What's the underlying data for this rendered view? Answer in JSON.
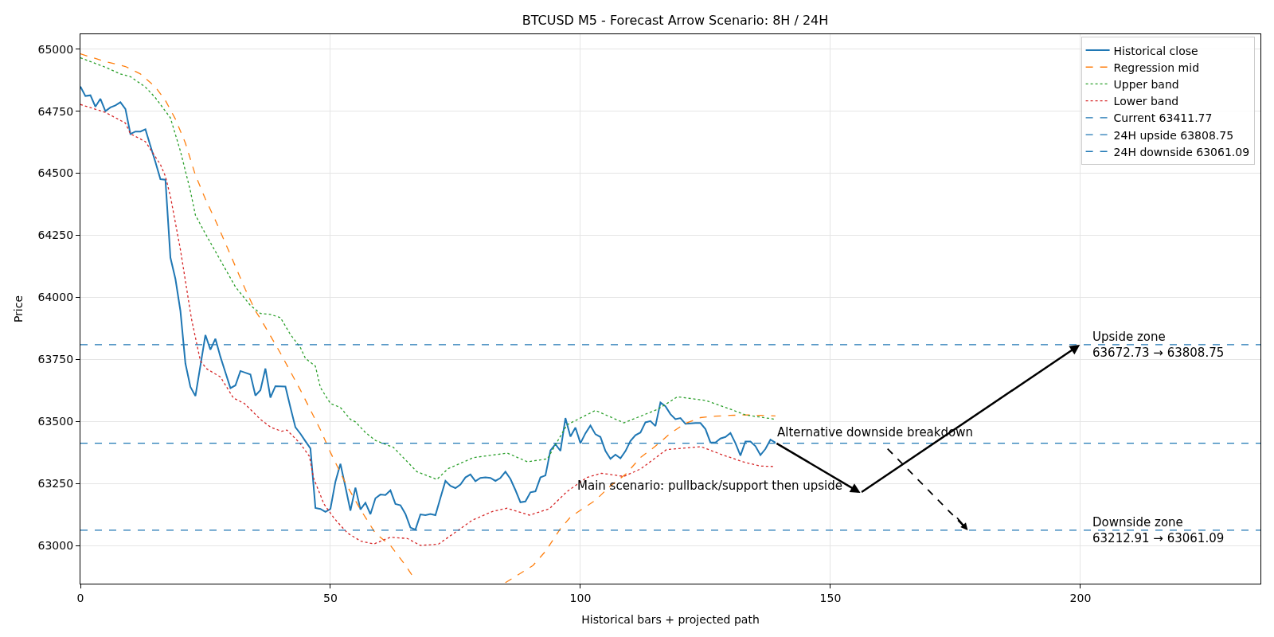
{
  "chart_data": {
    "type": "line",
    "title": "BTCUSD M5 - Forecast Arrow Scenario: 8H / 24H",
    "xlabel": "Historical bars + projected path",
    "ylabel": "Price",
    "xlim": [
      0,
      236
    ],
    "xticks": [
      0,
      50,
      100,
      150,
      200
    ],
    "ylim": [
      62846,
      65060
    ],
    "yticks": [
      63000,
      63250,
      63500,
      63750,
      64000,
      64250,
      64500,
      64750,
      65000
    ],
    "grid": true,
    "legend": "top right",
    "series": [
      {
        "name": "Historical close",
        "color": "#1f77b4",
        "line_style": "solid",
        "x": [
          0,
          1,
          2,
          3,
          4,
          5,
          6,
          7,
          8,
          9,
          10,
          11,
          12,
          13,
          14,
          15,
          16,
          17,
          18,
          19,
          20,
          21,
          22,
          23,
          24,
          25,
          26,
          27,
          28,
          29,
          30,
          31,
          32,
          33,
          34,
          35,
          36,
          37,
          38,
          39,
          40,
          41,
          42,
          43,
          44,
          45,
          46,
          47,
          48,
          49,
          50,
          51,
          52,
          53,
          54,
          55,
          56,
          57,
          58,
          59,
          60,
          61,
          62,
          63,
          64,
          65,
          66,
          67,
          68,
          69,
          70,
          71,
          72,
          73,
          74,
          75,
          76,
          77,
          78,
          79,
          80,
          81,
          82,
          83,
          84,
          85,
          86,
          87,
          88,
          89,
          90,
          91,
          92,
          93,
          94,
          95,
          96,
          97,
          98,
          99,
          100,
          101,
          102,
          103,
          104,
          105,
          106,
          107,
          108,
          109,
          110,
          111,
          112,
          113,
          114,
          115,
          116,
          117,
          118,
          119,
          120,
          121,
          122,
          123,
          124,
          125,
          126,
          127,
          128,
          129,
          130,
          131,
          132,
          133,
          134,
          135,
          136,
          137,
          138,
          139
        ],
        "values": [
          64849,
          64811,
          64814,
          64768,
          64800,
          64750,
          64765,
          64773,
          64786,
          64759,
          64658,
          64668,
          64668,
          64677,
          64610,
          64545,
          64476,
          64474,
          64160,
          64074,
          63945,
          63733,
          63639,
          63602,
          63725,
          63848,
          63789,
          63833,
          63760,
          63697,
          63634,
          63645,
          63703,
          63696,
          63689,
          63604,
          63626,
          63713,
          63596,
          63642,
          63641,
          63640,
          63556,
          63476,
          63450,
          63420,
          63391,
          63151,
          63147,
          63135,
          63147,
          63257,
          63329,
          63236,
          63140,
          63233,
          63145,
          63172,
          63126,
          63190,
          63205,
          63203,
          63222,
          63167,
          63162,
          63127,
          63072,
          63064,
          63125,
          63122,
          63127,
          63122,
          63192,
          63260,
          63240,
          63231,
          63245,
          63274,
          63286,
          63259,
          63272,
          63274,
          63272,
          63260,
          63272,
          63297,
          63268,
          63223,
          63174,
          63177,
          63214,
          63218,
          63274,
          63282,
          63383,
          63408,
          63381,
          63513,
          63439,
          63475,
          63412,
          63452,
          63483,
          63448,
          63437,
          63381,
          63349,
          63366,
          63351,
          63380,
          63421,
          63444,
          63455,
          63496,
          63501,
          63481,
          63576,
          63561,
          63529,
          63509,
          63513,
          63490,
          63492,
          63493,
          63493,
          63469,
          63415,
          63415,
          63431,
          63437,
          63453,
          63412,
          63362,
          63419,
          63419,
          63400,
          63364,
          63389,
          63426,
          63414
        ]
      },
      {
        "name": "Regression mid",
        "color": "#ff7f0e",
        "line_style": "dashed",
        "x": [
          0,
          5,
          9,
          12,
          15,
          17,
          19,
          21,
          23,
          25,
          27,
          30,
          33,
          35,
          36,
          40,
          44,
          48,
          50,
          53,
          56,
          59,
          62,
          65,
          67,
          68,
          84,
          85,
          90.5,
          93,
          96,
          98,
          100,
          103,
          106,
          109,
          112,
          115,
          118,
          121,
          124,
          127,
          130,
          133,
          136,
          139
        ],
        "values": [
          64981,
          64950,
          64930,
          64900,
          64847,
          64793,
          64718,
          64621,
          64492,
          64396,
          64310,
          64171,
          64031,
          63945,
          63914,
          63775,
          63626,
          63466,
          63375,
          63252,
          63145,
          63049,
          63000,
          62920,
          62860,
          null,
          null,
          62850,
          62919,
          62976,
          63068,
          63114,
          63142,
          63182,
          63240,
          63286,
          63354,
          63400,
          63452,
          63492,
          63515,
          63521,
          63524,
          63526,
          63524,
          63522
        ]
      },
      {
        "name": "Upper band",
        "color": "#2ca02c",
        "line_style": "dotted",
        "x": [
          0,
          5,
          8,
          10,
          13,
          15,
          17,
          18,
          20,
          22,
          23,
          25,
          28,
          31,
          34,
          36,
          38,
          40,
          42,
          44,
          45,
          47,
          48,
          50,
          52,
          54,
          55,
          57,
          59,
          62.6,
          67.3,
          71.3,
          73.5,
          78.6,
          85.4,
          89.4,
          93.4,
          97.3,
          103,
          108.7,
          115.5,
          119.4,
          125.1,
          129.6,
          133,
          138.7
        ],
        "values": [
          64965,
          64927,
          64900,
          64889,
          64847,
          64804,
          64750,
          64723,
          64589,
          64428,
          64331,
          64256,
          64149,
          64042,
          63967,
          63935,
          63931,
          63918,
          63850,
          63797,
          63754,
          63722,
          63636,
          63572,
          63556,
          63508,
          63498,
          63455,
          63423,
          63395,
          63297,
          63266,
          63309,
          63354,
          63372,
          63337,
          63349,
          63486,
          63544,
          63494,
          63549,
          63599,
          63584,
          63552,
          63526,
          63509
        ]
      },
      {
        "name": "Lower band",
        "color": "#d62728",
        "line_style": "dotted",
        "x": [
          0,
          5,
          9,
          10,
          13,
          16,
          17,
          18,
          20,
          22.2,
          24,
          25.3,
          28,
          30.6,
          32.8,
          34.4,
          36,
          38.1,
          40.2,
          41.3,
          43.9,
          45.8,
          46.6,
          48.7,
          50.8,
          53.4,
          56.1,
          58.7,
          62,
          65.4,
          68,
          71.6,
          75.6,
          78.4,
          82.4,
          85.3,
          89.8,
          93.8,
          97.3,
          101.3,
          104.2,
          108.7,
          112.1,
          117.2,
          124.1,
          128,
          132.5,
          135.9,
          138.7
        ],
        "values": [
          64777,
          64745,
          64702,
          64659,
          64627,
          64535,
          64487,
          64407,
          64192,
          63914,
          63743,
          63711,
          63679,
          63594,
          63572,
          63540,
          63508,
          63476,
          63460,
          63465,
          63412,
          63359,
          63273,
          63167,
          63108,
          63050,
          63017,
          63006,
          63033,
          63028,
          63000,
          63005,
          63062,
          63102,
          63137,
          63150,
          63122,
          63148,
          63217,
          63274,
          63291,
          63278,
          63309,
          63386,
          63398,
          63368,
          63337,
          63320,
          63318
        ]
      }
    ],
    "ref_lines": [
      {
        "axis": "y",
        "value": 63411.77,
        "label": "Current 63411.77",
        "color": "#1f77b4",
        "line_style": "dashed"
      },
      {
        "axis": "y",
        "value": 63808.75,
        "label": "24H upside 63808.75",
        "color": "#1f77b4",
        "line_style": "dashed"
      },
      {
        "axis": "y",
        "value": 63061.09,
        "label": "24H downside 63061.09",
        "color": "#1f77b4",
        "line_style": "dashed"
      }
    ],
    "annotations": [
      {
        "text": "Upside zone\n63672.73 → 63808.75",
        "y": 63808.75
      },
      {
        "text": "Downside zone\n63212.91 → 63061.09",
        "y": 63061.09
      },
      "Main scenario: pullback/support then upside",
      {
        "text": "Alternative downside breakdown",
        "y": 63411.77
      }
    ]
  }
}
